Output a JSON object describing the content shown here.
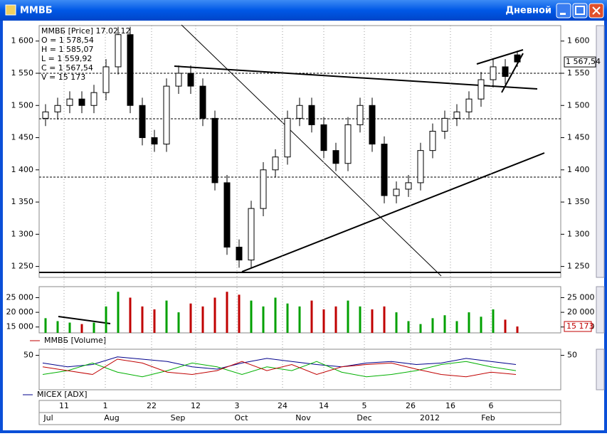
{
  "window": {
    "title": "ММВБ",
    "mode": "Дневной"
  },
  "chart_data": [
    {
      "type": "candlestick",
      "legend": [
        "ММВБ [Price] 17.02.12",
        "O = 1 578,54",
        "H = 1 585,07",
        "L = 1 559,92",
        "C = 1 567,54",
        "V = 15 173"
      ],
      "open": [
        1480,
        1490,
        1500,
        1510,
        1500,
        1520,
        1560,
        1610,
        1500,
        1450,
        1440,
        1530,
        1550,
        1530,
        1480,
        1380,
        1280,
        1260,
        1340,
        1400,
        1420,
        1480,
        1500,
        1470,
        1430,
        1410,
        1470,
        1500,
        1440,
        1360,
        1370,
        1380,
        1430,
        1460,
        1480,
        1490,
        1510,
        1540,
        1560,
        1578.54
      ],
      "high": [
        1502,
        1512,
        1522,
        1522,
        1532,
        1572,
        1622,
        1622,
        1512,
        1462,
        1542,
        1562,
        1562,
        1542,
        1492,
        1392,
        1292,
        1352,
        1412,
        1432,
        1492,
        1512,
        1512,
        1482,
        1442,
        1482,
        1512,
        1512,
        1452,
        1382,
        1392,
        1442,
        1472,
        1492,
        1502,
        1522,
        1552,
        1572,
        1572,
        1585.07
      ],
      "low": [
        1468,
        1478,
        1488,
        1488,
        1488,
        1508,
        1548,
        1488,
        1438,
        1428,
        1428,
        1518,
        1518,
        1468,
        1368,
        1268,
        1248,
        1248,
        1328,
        1388,
        1408,
        1468,
        1458,
        1418,
        1398,
        1398,
        1458,
        1428,
        1348,
        1348,
        1358,
        1368,
        1418,
        1448,
        1468,
        1478,
        1498,
        1528,
        1533,
        1559.92
      ],
      "close": [
        1490,
        1500,
        1510,
        1500,
        1520,
        1560,
        1610,
        1500,
        1450,
        1440,
        1530,
        1550,
        1530,
        1480,
        1380,
        1280,
        1260,
        1340,
        1400,
        1420,
        1480,
        1500,
        1470,
        1430,
        1410,
        1470,
        1500,
        1440,
        1360,
        1370,
        1380,
        1430,
        1460,
        1480,
        1490,
        1510,
        1540,
        1560,
        1545,
        1567.54
      ],
      "color": "#000000",
      "last_price": {
        "value": 1567.54,
        "label": "1 567,54"
      },
      "ylim": [
        1233,
        1624
      ],
      "yticks": [
        {
          "value": 1600,
          "label": "1 600"
        },
        {
          "value": 1550,
          "label": "1 550"
        },
        {
          "value": 1500,
          "label": "1 500"
        },
        {
          "value": 1450,
          "label": "1 450"
        },
        {
          "value": 1400,
          "label": "1 400"
        },
        {
          "value": 1350,
          "label": "1 350"
        },
        {
          "value": 1300,
          "label": "1 300"
        },
        {
          "value": 1250,
          "label": "1 250"
        }
      ]
    },
    {
      "type": "bar",
      "legend": "ММВБ [Volume]",
      "legend_color": "#c00000",
      "values": [
        18000,
        17000,
        16500,
        16000,
        16500,
        22000,
        27000,
        25000,
        22000,
        21000,
        24000,
        20000,
        23000,
        22000,
        25000,
        27000,
        26000,
        24000,
        22000,
        25000,
        23000,
        22000,
        24000,
        21000,
        22000,
        24000,
        22000,
        21000,
        22000,
        20000,
        17000,
        16000,
        18000,
        19000,
        17000,
        20000,
        18500,
        21000,
        17500,
        15173
      ],
      "up_color": "#00a000",
      "down_color": "#c00000",
      "last_value": {
        "value": 15173,
        "label": "15 173"
      },
      "ylim": [
        13000,
        28750
      ],
      "yticks": [
        {
          "value": 25000,
          "label": "25 000"
        },
        {
          "value": 20000,
          "label": "20 000"
        },
        {
          "value": 15000,
          "label": "15 000"
        }
      ]
    },
    {
      "type": "line",
      "legend": "MICEX [ADX]",
      "series": [
        {
          "color": "#00008b",
          "values": [
            40,
            35,
            38,
            48,
            45,
            42,
            35,
            32,
            40,
            46,
            42,
            38,
            35,
            40,
            42,
            38,
            40,
            46,
            42,
            38
          ]
        },
        {
          "color": "#00b000",
          "values": [
            25,
            30,
            40,
            28,
            22,
            30,
            40,
            35,
            25,
            35,
            30,
            42,
            28,
            22,
            25,
            30,
            38,
            42,
            35,
            30
          ]
        },
        {
          "color": "#c00000",
          "values": [
            35,
            30,
            25,
            45,
            40,
            28,
            25,
            30,
            42,
            30,
            38,
            25,
            35,
            38,
            40,
            32,
            25,
            22,
            28,
            25
          ]
        }
      ],
      "ylim": [
        5,
        58
      ],
      "yticks": [
        50
      ],
      "x_axis": {
        "days": [
          "11",
          "1",
          "22",
          "12",
          "3",
          "24",
          "14",
          "5",
          "26",
          "16",
          "6"
        ],
        "months": [
          "Jul",
          "Aug",
          "Sep",
          "Oct",
          "Nov",
          "Dec",
          "2012",
          "Feb"
        ]
      }
    }
  ]
}
